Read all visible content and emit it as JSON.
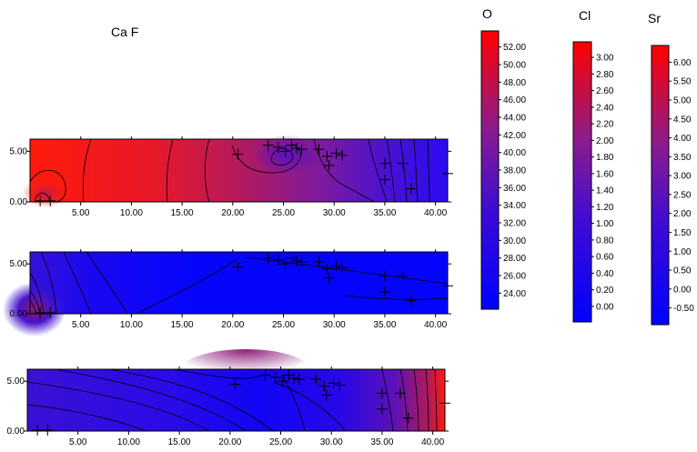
{
  "chart_data": {
    "type": "heatmap",
    "title": "Ca    F",
    "panels": [
      {
        "name": "panel-top",
        "x_ticks": [
          5,
          10,
          15,
          20,
          25,
          30,
          35,
          40
        ],
        "x_tick_labels": [
          "5.00",
          "10.00",
          "15.00",
          "20.00",
          "25.00",
          "30.00",
          "35.00",
          "40.00"
        ],
        "y_ticks": [
          0,
          5
        ],
        "y_tick_labels": [
          "0.00",
          "5.00"
        ],
        "xlim": [
          0,
          41.2
        ],
        "ylim": [
          0,
          6.2
        ]
      },
      {
        "name": "panel-middle",
        "x_ticks": [
          5,
          10,
          15,
          20,
          25,
          30,
          35,
          40
        ],
        "x_tick_labels": [
          "5.00",
          "10.00",
          "15.00",
          "20.00",
          "25.00",
          "30.00",
          "35.00",
          "40.00"
        ],
        "y_ticks": [
          0,
          5
        ],
        "y_tick_labels": [
          "0.00",
          "5.00"
        ],
        "xlim": [
          0,
          41.2
        ],
        "ylim": [
          0,
          6.2
        ]
      },
      {
        "name": "panel-bottom",
        "x_ticks": [
          5,
          10,
          15,
          20,
          25,
          30,
          35,
          40
        ],
        "x_tick_labels": [
          "5.00",
          "10.00",
          "15.00",
          "20.00",
          "25.00",
          "30.00",
          "35.00",
          "40.00"
        ],
        "y_ticks": [
          0,
          5
        ],
        "y_tick_labels": [
          "0.00",
          "5.00"
        ],
        "xlim": [
          0,
          41.2
        ],
        "ylim": [
          0,
          6.2
        ]
      }
    ],
    "sample_points": [
      {
        "x": 1.0,
        "y": 0.1
      },
      {
        "x": 2.0,
        "y": 0.1
      },
      {
        "x": 23.5,
        "y": 5.6
      },
      {
        "x": 24.5,
        "y": 5.4
      },
      {
        "x": 25.2,
        "y": 5.0
      },
      {
        "x": 25.8,
        "y": 5.6
      },
      {
        "x": 26.3,
        "y": 5.3
      },
      {
        "x": 26.8,
        "y": 5.2
      },
      {
        "x": 28.5,
        "y": 5.2
      },
      {
        "x": 29.3,
        "y": 4.5
      },
      {
        "x": 29.5,
        "y": 3.6
      },
      {
        "x": 30.2,
        "y": 4.8
      },
      {
        "x": 30.8,
        "y": 4.6
      },
      {
        "x": 20.5,
        "y": 4.7
      },
      {
        "x": 35.0,
        "y": 3.8
      },
      {
        "x": 35.0,
        "y": 2.2
      },
      {
        "x": 36.8,
        "y": 3.8
      },
      {
        "x": 37.6,
        "y": 1.3
      },
      {
        "x": 41.2,
        "y": 2.8
      }
    ],
    "colorbars": [
      {
        "title": "O",
        "tick_labels": [
          "52.00",
          "50.00",
          "48.00",
          "46.00",
          "44.00",
          "42.00",
          "40.00",
          "38.00",
          "36.00",
          "34.00",
          "32.00",
          "30.00",
          "28.00",
          "26.00",
          "24.00"
        ],
        "low_color": "#0000ff",
        "high_color": "#ff0000"
      },
      {
        "title": "Cl",
        "tick_labels": [
          "3.00",
          "2.80",
          "2.60",
          "2.40",
          "2.20",
          "2.00",
          "1.80",
          "1.60",
          "1.40",
          "1.20",
          "1.00",
          "0.80",
          "0.60",
          "0.40",
          "0.20",
          "0.00"
        ],
        "low_color": "#0000ff",
        "high_color": "#ff0000"
      },
      {
        "title": "Sr",
        "tick_labels": [
          "6.00",
          "5.50",
          "5.00",
          "4.50",
          "4.00",
          "3.50",
          "3.00",
          "2.50",
          "2.00",
          "1.50",
          "1.00",
          "0.50",
          "0.00",
          "-0.50"
        ],
        "low_color": "#0000ff",
        "high_color": "#ff0000"
      }
    ]
  }
}
